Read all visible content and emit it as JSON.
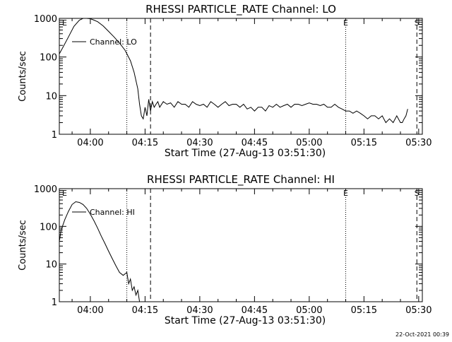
{
  "chart_data": [
    {
      "type": "line",
      "title": "RHESSI PARTICLE_RATE Channel: LO",
      "xlabel": "Start Time (27-Aug-13 03:51:30)",
      "ylabel": "Counts/sec",
      "yscale": "log",
      "ylim": [
        1,
        1000
      ],
      "xlim": [
        "03:51:30",
        "05:31:00"
      ],
      "x_tick_labels": [
        "04:00",
        "04:15",
        "04:30",
        "04:45",
        "05:00",
        "05:15",
        "05:30"
      ],
      "x_tick_values": [
        "04:00",
        "04:15",
        "04:30",
        "04:45",
        "05:00",
        "05:15",
        "05:30"
      ],
      "y_tick_labels": [
        "1",
        "10",
        "100",
        "1000"
      ],
      "y_tick_values": [
        1,
        10,
        100,
        1000
      ],
      "legend": {
        "placement": "top-left",
        "entries": [
          "Channel: LO"
        ]
      },
      "series": [
        {
          "name": "Channel: LO",
          "x": [
            "03:51:30",
            "03:52:30",
            "03:54:00",
            "03:55:30",
            "03:57:00",
            "03:58:00",
            "03:59:00",
            "04:00:00",
            "04:01:00",
            "04:02:00",
            "04:03:30",
            "04:05:00",
            "04:06:30",
            "04:08:00",
            "04:09:30",
            "04:11:00",
            "04:12:00",
            "04:13:00",
            "04:13:30",
            "04:14:00",
            "04:14:30",
            "04:15:00",
            "04:15:30",
            "04:16:00",
            "04:16:30",
            "04:17:00",
            "04:17:30",
            "04:18:00",
            "04:18:30",
            "04:19:00",
            "04:20:00",
            "04:21:00",
            "04:22:00",
            "04:23:00",
            "04:24:00",
            "04:25:00",
            "04:26:00",
            "04:27:00",
            "04:28:00",
            "04:29:00",
            "04:30:00",
            "04:31:00",
            "04:32:00",
            "04:33:00",
            "04:34:00",
            "04:35:00",
            "04:36:00",
            "04:37:00",
            "04:38:00",
            "04:39:00",
            "04:40:00",
            "04:41:00",
            "04:42:00",
            "04:43:00",
            "04:44:00",
            "04:45:00",
            "04:46:00",
            "04:47:00",
            "04:48:00",
            "04:49:00",
            "04:50:00",
            "04:51:00",
            "04:52:00",
            "04:53:00",
            "04:54:00",
            "04:55:00",
            "04:56:00",
            "04:57:00",
            "04:58:00",
            "04:59:00",
            "05:00:00",
            "05:01:00",
            "05:02:00",
            "05:03:00",
            "05:04:00",
            "05:05:00",
            "05:06:00",
            "05:07:00",
            "05:08:00",
            "05:09:00",
            "05:10:00",
            "05:11:00",
            "05:12:00",
            "05:13:00",
            "05:14:00",
            "05:15:00",
            "05:16:00",
            "05:17:00",
            "05:18:00",
            "05:19:00",
            "05:20:00",
            "05:21:00",
            "05:22:00",
            "05:23:00",
            "05:24:00",
            "05:25:00",
            "05:25:30",
            "05:26:00",
            "05:26:30",
            "05:27:00"
          ],
          "y": [
            120,
            180,
            330,
            620,
            900,
            1000,
            1000,
            980,
            900,
            820,
            640,
            460,
            330,
            230,
            150,
            80,
            40,
            15,
            6,
            3,
            2.5,
            5,
            3,
            8,
            4,
            7,
            5,
            6,
            7,
            5,
            7,
            6,
            6.5,
            5,
            7,
            6,
            6,
            5,
            7,
            6,
            5.5,
            6,
            5,
            7,
            6,
            5,
            6,
            7,
            5.5,
            6,
            6,
            5,
            6,
            4.5,
            5,
            4,
            5,
            5,
            4,
            5.5,
            5,
            6,
            5,
            5.5,
            6,
            5,
            6,
            6,
            5.5,
            6,
            6.5,
            6,
            6,
            5.5,
            6,
            5,
            5,
            6,
            5,
            4.5,
            4,
            4,
            3.5,
            4,
            3.5,
            3,
            2.5,
            3,
            3,
            2.5,
            3,
            2,
            2.5,
            2,
            3,
            2,
            2,
            2.5,
            3,
            4.5
          ]
        }
      ],
      "vlines": [
        {
          "x": "04:10:00",
          "style": "dotted"
        },
        {
          "x": "04:16:30",
          "style": "dashed"
        },
        {
          "x": "05:10:00",
          "style": "dotted"
        },
        {
          "x": "05:29:30",
          "style": "dashed"
        }
      ],
      "markers": [
        {
          "x": "03:51:30",
          "label": "E"
        },
        {
          "x": "05:10:00",
          "label": "E"
        },
        {
          "x": "05:29:30",
          "label": "S"
        }
      ]
    },
    {
      "type": "line",
      "title": "RHESSI PARTICLE_RATE Channel: HI",
      "xlabel": "Start Time (27-Aug-13 03:51:30)",
      "ylabel": "Counts/sec",
      "yscale": "log",
      "ylim": [
        1,
        1000
      ],
      "xlim": [
        "03:51:30",
        "05:31:00"
      ],
      "x_tick_labels": [
        "04:00",
        "04:15",
        "04:30",
        "04:45",
        "05:00",
        "05:15",
        "05:30"
      ],
      "x_tick_values": [
        "04:00",
        "04:15",
        "04:30",
        "04:45",
        "05:00",
        "05:15",
        "05:30"
      ],
      "y_tick_labels": [
        "1",
        "10",
        "100",
        "1000"
      ],
      "y_tick_values": [
        1,
        10,
        100,
        1000
      ],
      "legend": {
        "placement": "top-left",
        "entries": [
          "Channel: HI"
        ]
      },
      "series": [
        {
          "name": "Channel: HI",
          "x": [
            "03:51:30",
            "03:52:00",
            "03:53:00",
            "03:54:00",
            "03:55:00",
            "03:56:00",
            "03:57:00",
            "03:58:00",
            "03:59:00",
            "04:00:00",
            "04:01:00",
            "04:02:00",
            "04:03:00",
            "04:04:00",
            "04:05:00",
            "04:06:00",
            "04:07:00",
            "04:08:00",
            "04:09:00",
            "04:10:00",
            "04:10:30",
            "04:11:00",
            "04:11:30",
            "04:12:00",
            "04:12:30",
            "04:13:00",
            "04:13:30",
            "04:14:00"
          ],
          "y": [
            40,
            80,
            150,
            250,
            380,
            450,
            430,
            380,
            300,
            210,
            140,
            90,
            55,
            35,
            22,
            14,
            9,
            6,
            5,
            6,
            3,
            4,
            2,
            2.5,
            1.5,
            2,
            1,
            1
          ]
        }
      ],
      "vlines": [
        {
          "x": "04:10:00",
          "style": "dotted"
        },
        {
          "x": "04:16:30",
          "style": "dashed"
        },
        {
          "x": "05:10:00",
          "style": "dotted"
        },
        {
          "x": "05:29:30",
          "style": "dashed"
        }
      ],
      "markers": [
        {
          "x": "03:51:30",
          "label": "E"
        },
        {
          "x": "05:10:00",
          "label": "E"
        },
        {
          "x": "05:29:30",
          "label": "S"
        }
      ]
    }
  ],
  "footer": {
    "timestamp": "22-Oct-2021 00:39"
  }
}
